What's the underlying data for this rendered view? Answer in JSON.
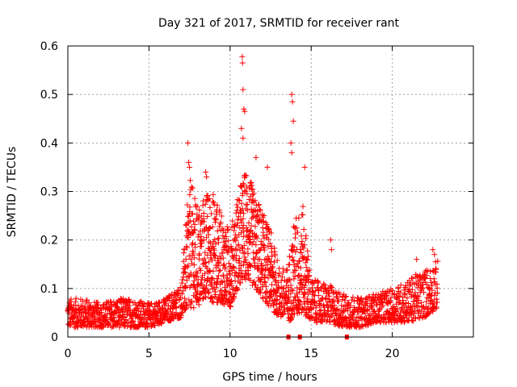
{
  "chart_data": {
    "type": "scatter",
    "title": "Day 321 of 2017, SRMTID for receiver rant",
    "xlabel": "GPS time / hours",
    "ylabel": "SRMTID / TECUs",
    "xlim": [
      0,
      25
    ],
    "ylim": [
      0,
      0.6
    ],
    "xticks": [
      0,
      5,
      10,
      15,
      20
    ],
    "yticks": [
      0,
      0.1,
      0.2,
      0.3,
      0.4,
      0.5,
      0.6
    ],
    "ytick_labels": [
      "0",
      "0.1",
      "0.2",
      "0.3",
      "0.4",
      "0.5",
      "0.6"
    ],
    "grid": true,
    "marker": "plus",
    "color": "#ff0000",
    "series": [
      {
        "name": "SRMTID",
        "description": "Dense time series of SRMTID values: background ~0.03-0.08 TECU before 7h, enhanced activity 7-15h with peaks near 0.4 (7.4h), 0.58 (10.8h), 0.5 (13.8h), moderate values 0.05-0.18 after 15h up to ~22.8h.",
        "envelope": [
          {
            "x": 0.0,
            "lo": 0.02,
            "hi": 0.08
          },
          {
            "x": 1.0,
            "lo": 0.02,
            "hi": 0.08
          },
          {
            "x": 2.0,
            "lo": 0.02,
            "hi": 0.07
          },
          {
            "x": 3.0,
            "lo": 0.02,
            "hi": 0.08
          },
          {
            "x": 4.0,
            "lo": 0.02,
            "hi": 0.08
          },
          {
            "x": 5.0,
            "lo": 0.02,
            "hi": 0.07
          },
          {
            "x": 6.0,
            "lo": 0.03,
            "hi": 0.08
          },
          {
            "x": 7.0,
            "lo": 0.04,
            "hi": 0.11
          },
          {
            "x": 7.5,
            "lo": 0.06,
            "hi": 0.33
          },
          {
            "x": 8.0,
            "lo": 0.06,
            "hi": 0.27
          },
          {
            "x": 8.5,
            "lo": 0.08,
            "hi": 0.3
          },
          {
            "x": 9.0,
            "lo": 0.07,
            "hi": 0.3
          },
          {
            "x": 9.5,
            "lo": 0.07,
            "hi": 0.25
          },
          {
            "x": 10.0,
            "lo": 0.06,
            "hi": 0.22
          },
          {
            "x": 10.5,
            "lo": 0.1,
            "hi": 0.3
          },
          {
            "x": 11.0,
            "lo": 0.12,
            "hi": 0.35
          },
          {
            "x": 11.5,
            "lo": 0.1,
            "hi": 0.3
          },
          {
            "x": 12.0,
            "lo": 0.08,
            "hi": 0.26
          },
          {
            "x": 12.5,
            "lo": 0.06,
            "hi": 0.22
          },
          {
            "x": 13.0,
            "lo": 0.04,
            "hi": 0.15
          },
          {
            "x": 13.5,
            "lo": 0.03,
            "hi": 0.14
          },
          {
            "x": 14.0,
            "lo": 0.04,
            "hi": 0.25
          },
          {
            "x": 14.5,
            "lo": 0.05,
            "hi": 0.27
          },
          {
            "x": 15.0,
            "lo": 0.03,
            "hi": 0.12
          },
          {
            "x": 16.0,
            "lo": 0.03,
            "hi": 0.11
          },
          {
            "x": 17.0,
            "lo": 0.02,
            "hi": 0.09
          },
          {
            "x": 18.0,
            "lo": 0.02,
            "hi": 0.08
          },
          {
            "x": 19.0,
            "lo": 0.03,
            "hi": 0.09
          },
          {
            "x": 20.0,
            "lo": 0.03,
            "hi": 0.1
          },
          {
            "x": 21.0,
            "lo": 0.03,
            "hi": 0.12
          },
          {
            "x": 22.0,
            "lo": 0.04,
            "hi": 0.14
          },
          {
            "x": 22.8,
            "lo": 0.06,
            "hi": 0.16
          }
        ],
        "spikes": [
          {
            "x": 7.4,
            "y": 0.4
          },
          {
            "x": 7.45,
            "y": 0.36
          },
          {
            "x": 7.5,
            "y": 0.35
          },
          {
            "x": 8.5,
            "y": 0.34
          },
          {
            "x": 8.55,
            "y": 0.33
          },
          {
            "x": 10.75,
            "y": 0.578
          },
          {
            "x": 10.77,
            "y": 0.565
          },
          {
            "x": 10.8,
            "y": 0.51
          },
          {
            "x": 10.85,
            "y": 0.47
          },
          {
            "x": 10.9,
            "y": 0.465
          },
          {
            "x": 10.7,
            "y": 0.43
          },
          {
            "x": 10.8,
            "y": 0.41
          },
          {
            "x": 11.6,
            "y": 0.37
          },
          {
            "x": 12.3,
            "y": 0.35
          },
          {
            "x": 13.8,
            "y": 0.5
          },
          {
            "x": 13.85,
            "y": 0.485
          },
          {
            "x": 13.9,
            "y": 0.445
          },
          {
            "x": 13.75,
            "y": 0.4
          },
          {
            "x": 13.8,
            "y": 0.38
          },
          {
            "x": 14.6,
            "y": 0.35
          },
          {
            "x": 16.2,
            "y": 0.2
          },
          {
            "x": 16.25,
            "y": 0.18
          },
          {
            "x": 21.5,
            "y": 0.16
          },
          {
            "x": 22.5,
            "y": 0.18
          },
          {
            "x": 22.6,
            "y": 0.17
          }
        ],
        "gap_markers_x": [
          13.6,
          14.3,
          17.2
        ]
      }
    ]
  }
}
